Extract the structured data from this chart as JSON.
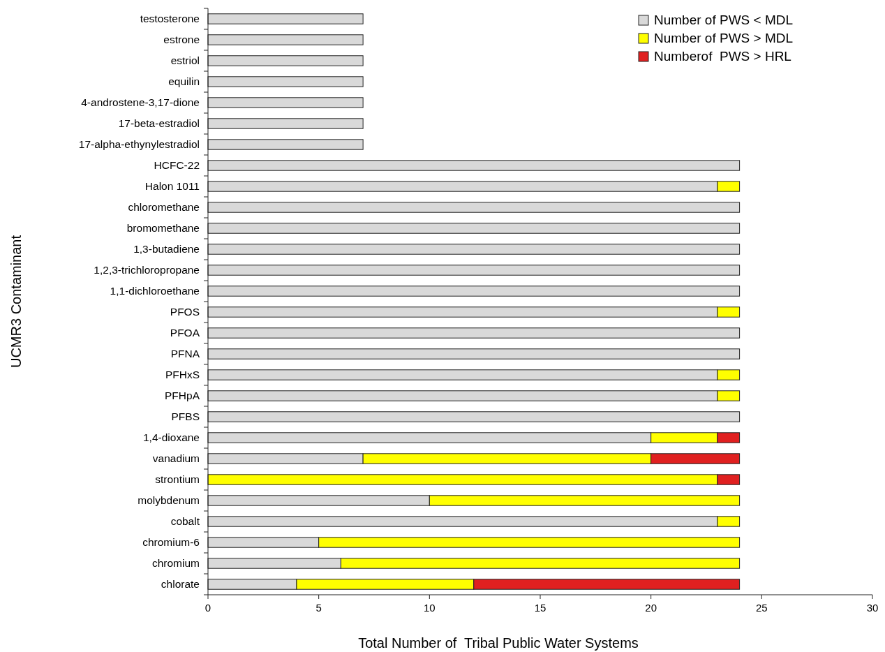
{
  "chart_data": {
    "type": "bar",
    "orientation": "horizontal",
    "stacked": true,
    "xlabel": "Total Number of  Tribal Public Water Systems",
    "ylabel": "UCMR3 Contaminant",
    "categories": [
      "testosterone",
      "estrone",
      "estriol",
      "equilin",
      "4-androstene-3,17-dione",
      "17-beta-estradiol",
      "17-alpha-ethynylestradiol",
      "HCFC-22",
      "Halon 1011",
      "chloromethane",
      "bromomethane",
      "1,3-butadiene",
      "1,2,3-trichloropropane",
      "1,1-dichloroethane",
      "PFOS",
      "PFOA",
      "PFNA",
      "PFHxS",
      "PFHpA",
      "PFBS",
      "1,4-dioxane",
      "vanadium",
      "strontium",
      "molybdenum",
      "cobalt",
      "chromium-6",
      "chromium",
      "chlorate"
    ],
    "series": [
      {
        "name": "Number of PWS < MDL",
        "color": "#d9d9d9",
        "values": [
          7,
          7,
          7,
          7,
          7,
          7,
          7,
          24,
          23,
          24,
          24,
          24,
          24,
          24,
          23,
          24,
          24,
          23,
          23,
          24,
          20,
          7,
          0,
          10,
          23,
          5,
          6,
          4
        ]
      },
      {
        "name": "Number of PWS > MDL",
        "color": "#ffff00",
        "values": [
          0,
          0,
          0,
          0,
          0,
          0,
          0,
          0,
          1,
          0,
          0,
          0,
          0,
          0,
          1,
          0,
          0,
          1,
          1,
          0,
          3,
          13,
          23,
          14,
          1,
          19,
          18,
          8
        ]
      },
      {
        "name": "Numberof  PWS > HRL",
        "color": "#e02020",
        "values": [
          0,
          0,
          0,
          0,
          0,
          0,
          0,
          0,
          0,
          0,
          0,
          0,
          0,
          0,
          0,
          0,
          0,
          0,
          0,
          0,
          1,
          4,
          1,
          0,
          0,
          0,
          0,
          12
        ]
      }
    ],
    "xlim": [
      0,
      30
    ],
    "xticks": [
      0,
      5,
      10,
      15,
      20,
      25,
      30
    ],
    "legend": "top right",
    "grid": false
  }
}
